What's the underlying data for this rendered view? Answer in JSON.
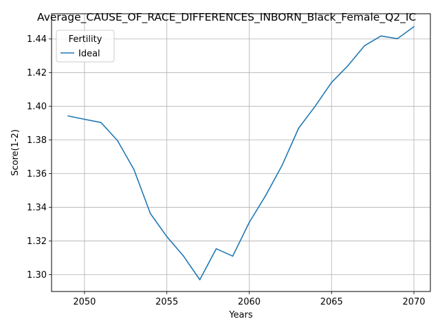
{
  "chart_data": {
    "type": "line",
    "title": "Average_CAUSE_OF_RACE_DIFFERENCES_INBORN_Black_Female_Q2_IC",
    "xlabel": "Years",
    "ylabel": "Score(1-2)",
    "xlim": [
      2048,
      2071
    ],
    "ylim": [
      1.29,
      1.455
    ],
    "xticks": [
      2050,
      2055,
      2060,
      2065,
      2070
    ],
    "yticks": [
      1.3,
      1.32,
      1.34,
      1.36,
      1.38,
      1.4,
      1.42,
      1.44
    ],
    "ytick_labels": [
      "1.30",
      "1.32",
      "1.34",
      "1.36",
      "1.38",
      "1.40",
      "1.42",
      "1.44"
    ],
    "grid": true,
    "legend": {
      "title": "Fertility",
      "placement": "top-left"
    },
    "series": [
      {
        "name": "Ideal",
        "color": "#1f77b4",
        "x": [
          2049,
          2050,
          2051,
          2052,
          2053,
          2054,
          2055,
          2056,
          2057,
          2058,
          2059,
          2060,
          2061,
          2062,
          2063,
          2064,
          2065,
          2066,
          2067,
          2068,
          2069,
          2070
        ],
        "y": [
          1.3943,
          1.3923,
          1.3904,
          1.3797,
          1.3625,
          1.3363,
          1.3226,
          1.3112,
          1.297,
          1.3154,
          1.311,
          1.331,
          1.347,
          1.365,
          1.387,
          1.4,
          1.4142,
          1.4242,
          1.436,
          1.4418,
          1.4402,
          1.4473
        ]
      }
    ]
  }
}
